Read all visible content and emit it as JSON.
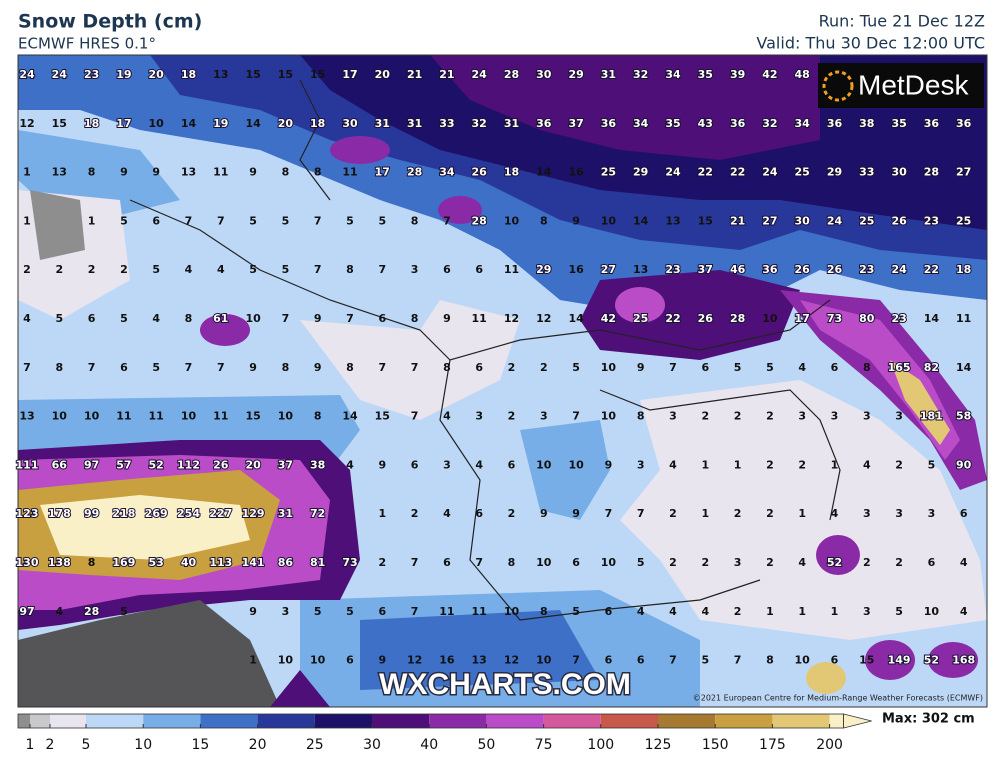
{
  "header": {
    "title": "Snow Depth (cm)",
    "subtitle": "ECMWF HRES 0.1°",
    "run": "Run: Tue 21 Dec 12Z",
    "valid": "Valid: Thu 30 Dec 12:00 UTC"
  },
  "map": {
    "logo": "MetDesk",
    "watermark": "WXCHARTS.COM",
    "copyright": "©2021 European Centre for Medium-Range Weather Forecasts (ECMWF)",
    "value_rows": [
      [
        24,
        24,
        23,
        19,
        20,
        18,
        13,
        15,
        15,
        15,
        17,
        20,
        21,
        21,
        24,
        28,
        30,
        29,
        31,
        32,
        34,
        35,
        39,
        42,
        48
      ],
      [
        12,
        15,
        18,
        17,
        10,
        14,
        19,
        14,
        20,
        18,
        30,
        31,
        31,
        33,
        32,
        31,
        36,
        37,
        36,
        34,
        35,
        43,
        36,
        32,
        34,
        36,
        38,
        35,
        36,
        36
      ],
      [
        1,
        13,
        8,
        9,
        9,
        13,
        11,
        9,
        8,
        8,
        11,
        17,
        28,
        34,
        26,
        18,
        14,
        16,
        25,
        29,
        24,
        22,
        22,
        24,
        25,
        29,
        33,
        30,
        28,
        27
      ],
      [
        1,
        null,
        1,
        5,
        6,
        7,
        7,
        5,
        5,
        7,
        5,
        5,
        8,
        7,
        28,
        10,
        8,
        9,
        10,
        14,
        13,
        15,
        21,
        27,
        30,
        24,
        25,
        26,
        23,
        25
      ],
      [
        2,
        2,
        2,
        2,
        5,
        4,
        4,
        5,
        5,
        7,
        8,
        7,
        3,
        6,
        6,
        11,
        29,
        16,
        27,
        13,
        23,
        37,
        46,
        36,
        26,
        26,
        23,
        24,
        22,
        18
      ],
      [
        4,
        5,
        6,
        5,
        4,
        8,
        61,
        10,
        7,
        9,
        7,
        6,
        8,
        9,
        11,
        12,
        12,
        14,
        42,
        25,
        22,
        26,
        28,
        10,
        17,
        73,
        80,
        23,
        14,
        11
      ],
      [
        7,
        8,
        7,
        6,
        5,
        7,
        7,
        9,
        8,
        9,
        8,
        7,
        7,
        8,
        6,
        2,
        2,
        5,
        10,
        9,
        7,
        6,
        5,
        5,
        4,
        6,
        8,
        165,
        82,
        14
      ],
      [
        13,
        10,
        10,
        11,
        11,
        10,
        11,
        15,
        10,
        8,
        14,
        15,
        7,
        4,
        3,
        2,
        3,
        7,
        10,
        8,
        3,
        2,
        2,
        2,
        3,
        3,
        3,
        3,
        181,
        58
      ],
      [
        111,
        66,
        97,
        57,
        52,
        112,
        26,
        20,
        37,
        38,
        4,
        9,
        6,
        3,
        4,
        6,
        10,
        10,
        9,
        3,
        4,
        1,
        1,
        2,
        2,
        1,
        4,
        2,
        5,
        90
      ],
      [
        123,
        178,
        99,
        218,
        269,
        254,
        227,
        129,
        31,
        72,
        null,
        1,
        2,
        4,
        6,
        2,
        9,
        9,
        7,
        7,
        2,
        1,
        2,
        2,
        1,
        4,
        3,
        3,
        3,
        6
      ],
      [
        130,
        138,
        8,
        169,
        53,
        40,
        113,
        141,
        86,
        81,
        73,
        2,
        7,
        6,
        7,
        8,
        10,
        6,
        10,
        5,
        2,
        2,
        3,
        2,
        4,
        52,
        2,
        2,
        6,
        4
      ],
      [
        97,
        4,
        28,
        5,
        null,
        null,
        null,
        9,
        3,
        5,
        5,
        6,
        7,
        11,
        11,
        10,
        8,
        5,
        6,
        4,
        4,
        4,
        2,
        1,
        1,
        1,
        3,
        5,
        10,
        4
      ],
      [
        null,
        null,
        null,
        null,
        null,
        null,
        null,
        1,
        10,
        10,
        6,
        9,
        12,
        16,
        13,
        12,
        10,
        7,
        6,
        6,
        7,
        5,
        7,
        8,
        10,
        6,
        15,
        149,
        52,
        168
      ]
    ]
  },
  "colorbar": {
    "ticks": [
      1,
      2,
      5,
      10,
      15,
      20,
      25,
      30,
      40,
      50,
      75,
      100,
      125,
      150,
      175,
      200
    ],
    "colors": [
      "#8e8e8e",
      "#c9c9cc",
      "#e9e5ef",
      "#bcd8f6",
      "#78aee8",
      "#3e70c8",
      "#28389a",
      "#1c1068",
      "#4e0f78",
      "#8a2aa6",
      "#bb4cc8",
      "#d4589c",
      "#c8584a",
      "#a67a30",
      "#c9a040",
      "#e2c874",
      "#faf0c8"
    ],
    "max_label": "Max: 302 cm"
  }
}
